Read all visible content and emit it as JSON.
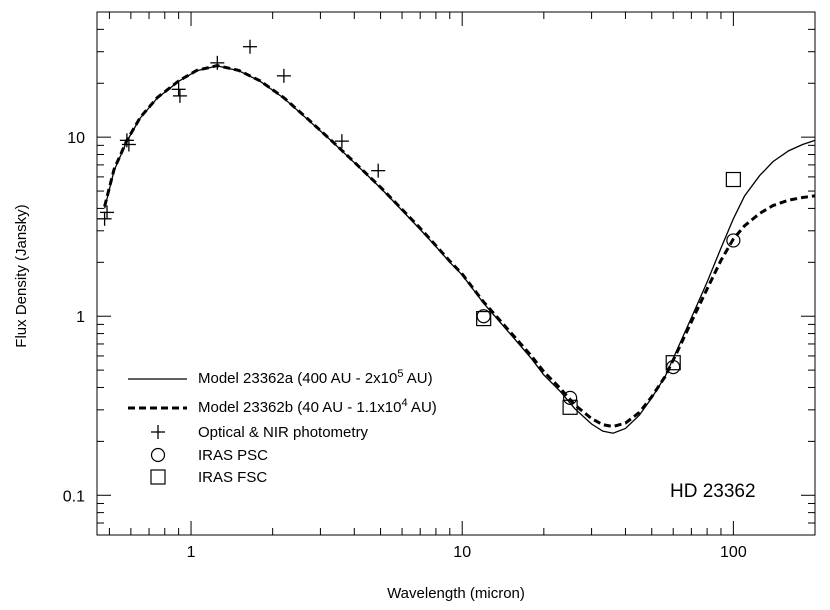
{
  "chart_data": {
    "type": "line",
    "title": "",
    "xlabel": "Wavelength (micron)",
    "ylabel": "Flux Density (Jansky)",
    "xscale": "log",
    "yscale": "log",
    "xlim": [
      0.45,
      200
    ],
    "ylim": [
      0.06,
      50
    ],
    "grid": false,
    "legend_position": "lower-left",
    "annotation": "HD 23362",
    "x_ticks": [
      {
        "value": 1,
        "label": "1"
      },
      {
        "value": 10,
        "label": "10"
      },
      {
        "value": 100,
        "label": "100"
      }
    ],
    "y_ticks": [
      {
        "value": 0.1,
        "label": "0.1"
      },
      {
        "value": 1,
        "label": "1"
      },
      {
        "value": 10,
        "label": "10"
      }
    ],
    "legend": [
      {
        "key": "a",
        "marker": "solid-line",
        "label": "Model 23362a (400 AU - 2x10",
        "sup": "5",
        "suffix": " AU)"
      },
      {
        "key": "b",
        "marker": "dashed-line",
        "label": "Model 23362b (40 AU - 1.1x10",
        "sup": "4",
        "suffix": " AU)"
      },
      {
        "key": "phot",
        "marker": "plus",
        "label": "Optical & NIR photometry",
        "sup": "",
        "suffix": ""
      },
      {
        "key": "psc",
        "marker": "circle",
        "label": "IRAS PSC",
        "sup": "",
        "suffix": ""
      },
      {
        "key": "fsc",
        "marker": "square",
        "label": "IRAS FSC",
        "sup": "",
        "suffix": ""
      }
    ],
    "series": [
      {
        "key": "a",
        "style": "solid",
        "points": [
          [
            0.48,
            4.0
          ],
          [
            0.52,
            6.5
          ],
          [
            0.58,
            9.5
          ],
          [
            0.65,
            12.8
          ],
          [
            0.75,
            16.5
          ],
          [
            0.9,
            20.5
          ],
          [
            1.05,
            23.5
          ],
          [
            1.25,
            25.0
          ],
          [
            1.5,
            23.5
          ],
          [
            1.8,
            20.5
          ],
          [
            2.2,
            16.5
          ],
          [
            2.7,
            12.5
          ],
          [
            3.3,
            9.5
          ],
          [
            4,
            7.2
          ],
          [
            5,
            5.2
          ],
          [
            6,
            3.9
          ],
          [
            7,
            3.05
          ],
          [
            8,
            2.45
          ],
          [
            9,
            2.0
          ],
          [
            10,
            1.7
          ],
          [
            12,
            1.18
          ],
          [
            15,
            0.8
          ],
          [
            18,
            0.58
          ],
          [
            20,
            0.47
          ],
          [
            23,
            0.38
          ],
          [
            26,
            0.305
          ],
          [
            30,
            0.25
          ],
          [
            33,
            0.228
          ],
          [
            36,
            0.222
          ],
          [
            40,
            0.236
          ],
          [
            45,
            0.28
          ],
          [
            50,
            0.35
          ],
          [
            56,
            0.46
          ],
          [
            62,
            0.65
          ],
          [
            70,
            0.98
          ],
          [
            80,
            1.55
          ],
          [
            90,
            2.4
          ],
          [
            100,
            3.5
          ],
          [
            110,
            4.7
          ],
          [
            125,
            6.1
          ],
          [
            140,
            7.3
          ],
          [
            160,
            8.4
          ],
          [
            180,
            9.1
          ],
          [
            200,
            9.6
          ]
        ]
      },
      {
        "key": "b",
        "style": "dashed",
        "points": [
          [
            0.48,
            4.1
          ],
          [
            0.52,
            6.6
          ],
          [
            0.58,
            9.6
          ],
          [
            0.65,
            12.9
          ],
          [
            0.75,
            16.6
          ],
          [
            0.9,
            20.6
          ],
          [
            1.05,
            23.6
          ],
          [
            1.25,
            25.1
          ],
          [
            1.5,
            23.6
          ],
          [
            1.8,
            20.6
          ],
          [
            2.2,
            16.6
          ],
          [
            2.7,
            12.6
          ],
          [
            3.3,
            9.55
          ],
          [
            4,
            7.25
          ],
          [
            5,
            5.25
          ],
          [
            6,
            3.95
          ],
          [
            7,
            3.1
          ],
          [
            8,
            2.48
          ],
          [
            9,
            2.03
          ],
          [
            10,
            1.72
          ],
          [
            12,
            1.2
          ],
          [
            15,
            0.82
          ],
          [
            18,
            0.6
          ],
          [
            20,
            0.49
          ],
          [
            23,
            0.395
          ],
          [
            26,
            0.32
          ],
          [
            30,
            0.268
          ],
          [
            33,
            0.248
          ],
          [
            36,
            0.242
          ],
          [
            40,
            0.253
          ],
          [
            45,
            0.29
          ],
          [
            50,
            0.355
          ],
          [
            56,
            0.46
          ],
          [
            62,
            0.63
          ],
          [
            70,
            0.93
          ],
          [
            80,
            1.42
          ],
          [
            90,
            2.05
          ],
          [
            100,
            2.7
          ],
          [
            110,
            3.2
          ],
          [
            125,
            3.75
          ],
          [
            140,
            4.15
          ],
          [
            160,
            4.45
          ],
          [
            180,
            4.6
          ],
          [
            200,
            4.7
          ]
        ]
      },
      {
        "key": "phot",
        "marker": "plus",
        "points": [
          [
            0.48,
            3.5
          ],
          [
            0.49,
            3.8
          ],
          [
            0.58,
            9.6
          ],
          [
            0.59,
            9.1
          ],
          [
            0.9,
            18.5
          ],
          [
            0.91,
            17.0
          ],
          [
            1.25,
            26.0
          ],
          [
            1.65,
            32.0
          ],
          [
            2.2,
            22.0
          ],
          [
            3.6,
            9.5
          ],
          [
            4.9,
            6.5
          ]
        ]
      },
      {
        "key": "psc",
        "marker": "circle",
        "points": [
          [
            12,
            1.0
          ],
          [
            25,
            0.35
          ],
          [
            60,
            0.52
          ],
          [
            100,
            2.65
          ]
        ]
      },
      {
        "key": "fsc",
        "marker": "square",
        "points": [
          [
            12,
            0.97
          ],
          [
            25,
            0.31
          ],
          [
            60,
            0.55
          ],
          [
            100,
            5.8
          ]
        ]
      }
    ]
  }
}
